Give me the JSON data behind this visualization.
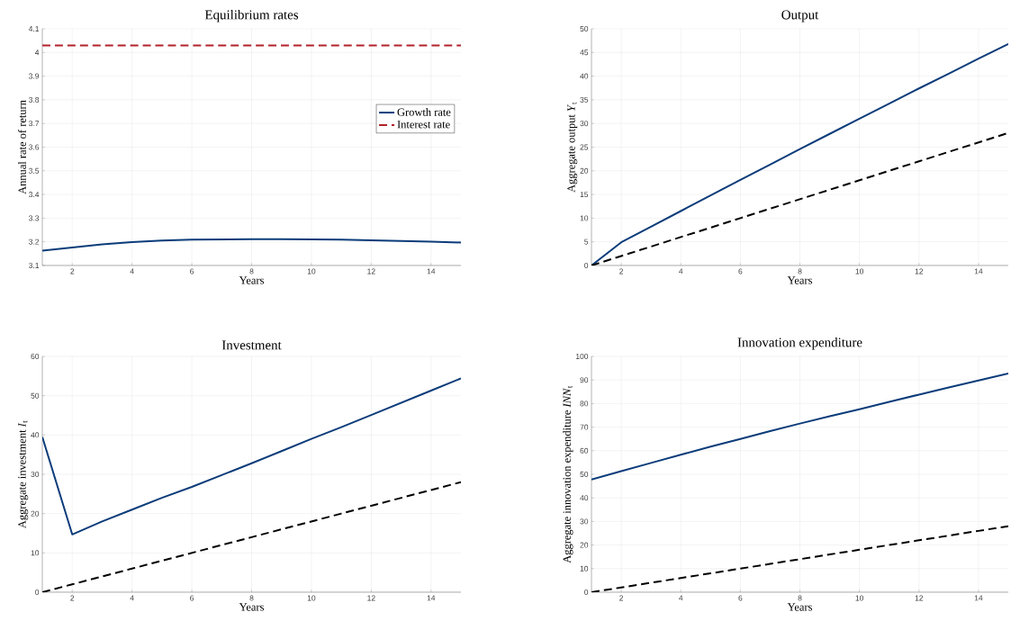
{
  "chart_data": [
    {
      "type": "line",
      "title": "Equilibrium rates",
      "xlabel": "Years",
      "ylabel": "Annual rate of return",
      "x": [
        1,
        2,
        3,
        4,
        5,
        6,
        7,
        8,
        9,
        10,
        11,
        12,
        13,
        14,
        15
      ],
      "xlim": [
        1,
        15
      ],
      "xticks": [
        2,
        4,
        6,
        8,
        10,
        12,
        14
      ],
      "ylim": [
        3.1,
        4.1
      ],
      "yticks": [
        3.1,
        3.2,
        3.3,
        3.4,
        3.5,
        3.6,
        3.7,
        3.8,
        3.9,
        4,
        4.1
      ],
      "grid": true,
      "legend": "right",
      "series": [
        {
          "name": "Growth rate",
          "color": "#0b3c7a",
          "line_style": "solid",
          "values": [
            3.163,
            3.176,
            3.189,
            3.199,
            3.205,
            3.209,
            3.21,
            3.211,
            3.211,
            3.21,
            3.209,
            3.206,
            3.204,
            3.201,
            3.197
          ]
        },
        {
          "name": "Interest rate",
          "color": "#b2222a",
          "line_style": "dashed",
          "values": [
            4.03,
            4.03,
            4.03,
            4.03,
            4.03,
            4.03,
            4.03,
            4.03,
            4.03,
            4.03,
            4.03,
            4.03,
            4.03,
            4.03,
            4.03
          ]
        }
      ]
    },
    {
      "type": "line",
      "title": "Output",
      "xlabel": "Years",
      "ylabel": "Aggregate output *Y*$_{t}$",
      "x": [
        1,
        2,
        3,
        4,
        5,
        6,
        7,
        8,
        9,
        10,
        11,
        12,
        13,
        14,
        15
      ],
      "xlim": [
        1,
        15
      ],
      "xticks": [
        2,
        4,
        6,
        8,
        10,
        12,
        14
      ],
      "ylim": [
        0,
        50
      ],
      "yticks": [
        0,
        5,
        10,
        15,
        20,
        25,
        30,
        35,
        40,
        45,
        50
      ],
      "grid": true,
      "series": [
        {
          "color": "#0b3c7a",
          "line_style": "solid",
          "values": [
            0,
            4.9,
            8.2,
            11.5,
            14.8,
            18.1,
            21.3,
            24.6,
            27.8,
            31.0,
            34.2,
            37.4,
            40.5,
            43.7,
            46.8
          ]
        },
        {
          "color": "#000000",
          "line_style": "dashed",
          "values": [
            0,
            2,
            4,
            6,
            8,
            10,
            12,
            14,
            16,
            18,
            20,
            22,
            24,
            26,
            28
          ]
        }
      ]
    },
    {
      "type": "line",
      "title": "Investment",
      "xlabel": "Years",
      "ylabel": "Aggregate investment *I*$_{t}$",
      "x": [
        1,
        2,
        3,
        4,
        5,
        6,
        7,
        8,
        9,
        10,
        11,
        12,
        13,
        14,
        15
      ],
      "xlim": [
        1,
        15
      ],
      "xticks": [
        2,
        4,
        6,
        8,
        10,
        12,
        14
      ],
      "ylim": [
        0,
        60
      ],
      "yticks": [
        0,
        10,
        20,
        30,
        40,
        50,
        60
      ],
      "grid": true,
      "series": [
        {
          "color": "#0b3c7a",
          "line_style": "solid",
          "values": [
            39.5,
            14.7,
            18,
            21,
            24,
            26.8,
            29.8,
            32.8,
            35.9,
            39,
            42,
            45.1,
            48.2,
            51.3,
            54.4
          ]
        },
        {
          "color": "#000000",
          "line_style": "dashed",
          "values": [
            0,
            2,
            4,
            6,
            8,
            10,
            12,
            14,
            16,
            18,
            20,
            22,
            24,
            26,
            28
          ]
        }
      ]
    },
    {
      "type": "line",
      "title": "Innovation expenditure",
      "xlabel": "Years",
      "ylabel": "Aggregate innovation expenditure *INN*$_{t}$",
      "x": [
        1,
        2,
        3,
        4,
        5,
        6,
        7,
        8,
        9,
        10,
        11,
        12,
        13,
        14,
        15
      ],
      "xlim": [
        1,
        15
      ],
      "xticks": [
        2,
        4,
        6,
        8,
        10,
        12,
        14
      ],
      "ylim": [
        0,
        100
      ],
      "yticks": [
        0,
        10,
        20,
        30,
        40,
        50,
        60,
        70,
        80,
        90,
        100
      ],
      "grid": true,
      "series": [
        {
          "color": "#0b3c7a",
          "line_style": "solid",
          "values": [
            47.8,
            51.3,
            54.8,
            58.3,
            61.7,
            65,
            68.3,
            71.5,
            74.6,
            77.6,
            80.7,
            83.8,
            86.8,
            89.8,
            92.8
          ]
        },
        {
          "color": "#000000",
          "line_style": "dashed",
          "values": [
            0,
            2,
            4,
            6,
            8,
            10,
            12,
            14,
            16,
            18,
            20,
            22,
            24,
            26,
            28
          ]
        }
      ]
    }
  ]
}
